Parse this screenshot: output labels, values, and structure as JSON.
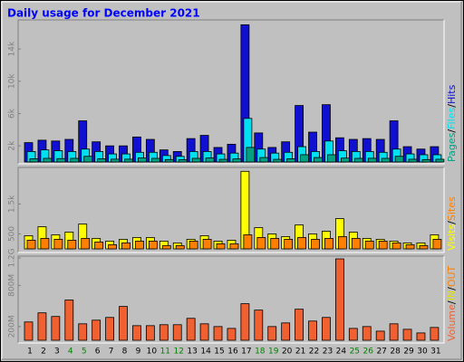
{
  "chart_data": [
    {
      "type": "bar",
      "title": "Daily usage for December 2021",
      "legend_separator": "/",
      "ylim": [
        0,
        17600
      ],
      "yticks": [
        {
          "value": 2000,
          "label": "2k"
        },
        {
          "value": 6000,
          "label": "6k"
        },
        {
          "value": 10000,
          "label": "10k"
        },
        {
          "value": 14000,
          "label": "14k"
        }
      ],
      "series": [
        {
          "name": "Pages",
          "color": "#00a080",
          "values": [
            400,
            450,
            420,
            450,
            700,
            400,
            350,
            350,
            500,
            450,
            300,
            280,
            450,
            500,
            330,
            380,
            1800,
            550,
            330,
            400,
            900,
            550,
            900,
            480,
            450,
            460,
            450,
            700,
            340,
            300,
            340
          ]
        },
        {
          "name": "Files",
          "color": "#00e0f0",
          "values": [
            1300,
            1500,
            1400,
            1300,
            1600,
            1300,
            1000,
            1000,
            1200,
            1200,
            800,
            700,
            1300,
            1300,
            1000,
            1100,
            5400,
            1600,
            1100,
            1200,
            1900,
            1300,
            2600,
            1400,
            1300,
            1300,
            1200,
            1600,
            1000,
            900,
            900
          ]
        },
        {
          "name": "Hits",
          "color": "#1010d0",
          "values": [
            2400,
            2700,
            2600,
            2800,
            5100,
            2500,
            2000,
            2000,
            3100,
            2800,
            1500,
            1300,
            2900,
            3300,
            1800,
            2200,
            17000,
            3600,
            1800,
            2500,
            7000,
            3700,
            7100,
            3000,
            2800,
            2900,
            2800,
            5100,
            1900,
            1600,
            1900
          ]
        }
      ]
    },
    {
      "type": "bar",
      "legend_separator": "/",
      "ylim": [
        0,
        2720
      ],
      "yticks": [
        500,
        {
          "value": 1500,
          "label": "1.5k"
        }
      ],
      "series": [
        {
          "name": "Visits",
          "color": "#ffff00",
          "values": [
            440,
            740,
            470,
            560,
            830,
            350,
            260,
            320,
            380,
            380,
            260,
            200,
            320,
            440,
            260,
            290,
            2590,
            710,
            500,
            410,
            800,
            500,
            590,
            1010,
            560,
            350,
            320,
            260,
            200,
            200,
            470
          ]
        },
        {
          "name": "Sites",
          "color": "#ff8000",
          "values": [
            290,
            350,
            320,
            290,
            350,
            230,
            140,
            200,
            260,
            260,
            110,
            110,
            260,
            320,
            170,
            170,
            470,
            380,
            350,
            320,
            380,
            320,
            350,
            410,
            350,
            260,
            260,
            200,
            140,
            110,
            320
          ]
        }
      ]
    },
    {
      "type": "bar",
      "legend_separator": "/",
      "ylim": [
        0,
        1227
      ],
      "yticks": [
        {
          "value": 200,
          "label": "200M"
        },
        {
          "value": 800,
          "label": "800M"
        },
        {
          "value": 1200,
          "label": "1.2G"
        }
      ],
      "categories": [
        "1",
        "2",
        "3",
        "4",
        "5",
        "6",
        "7",
        "8",
        "9",
        "10",
        "11",
        "12",
        "13",
        "14",
        "15",
        "16",
        "17",
        "18",
        "19",
        "20",
        "21",
        "22",
        "23",
        "24",
        "25",
        "26",
        "27",
        "28",
        "29",
        "30",
        "31"
      ],
      "category_colors": [
        "#000000",
        "#000000",
        "#000000",
        "#008000",
        "#008000",
        "#000000",
        "#000000",
        "#000000",
        "#000000",
        "#000000",
        "#008000",
        "#008000",
        "#000000",
        "#000000",
        "#000000",
        "#000000",
        "#000000",
        "#008000",
        "#008000",
        "#000000",
        "#000000",
        "#000000",
        "#000000",
        "#000000",
        "#008000",
        "#008000",
        "#000000",
        "#000000",
        "#000000",
        "#000000",
        "#000000"
      ],
      "series": [
        {
          "name": "Volume",
          "color": "#f06030",
          "values": [
            267,
            400,
            347,
            587,
            240,
            293,
            333,
            493,
            213,
            213,
            227,
            227,
            320,
            240,
            200,
            173,
            533,
            440,
            200,
            253,
            453,
            280,
            333,
            1187,
            173,
            200,
            133,
            240,
            160,
            107,
            187
          ]
        },
        {
          "name": "IN",
          "color": "#e0e000",
          "values": [
            null,
            null,
            null,
            null,
            null,
            null,
            null,
            null,
            null,
            null,
            null,
            null,
            null,
            null,
            null,
            null,
            null,
            null,
            null,
            null,
            null,
            null,
            null,
            null,
            null,
            null,
            null,
            null,
            null,
            null,
            null
          ]
        },
        {
          "name": "OUT",
          "color": "#ff8000",
          "values": [
            null,
            null,
            null,
            null,
            null,
            null,
            null,
            null,
            null,
            null,
            null,
            null,
            null,
            null,
            null,
            null,
            null,
            null,
            null,
            null,
            null,
            null,
            null,
            null,
            null,
            null,
            null,
            null,
            null,
            null,
            null
          ]
        }
      ]
    }
  ]
}
